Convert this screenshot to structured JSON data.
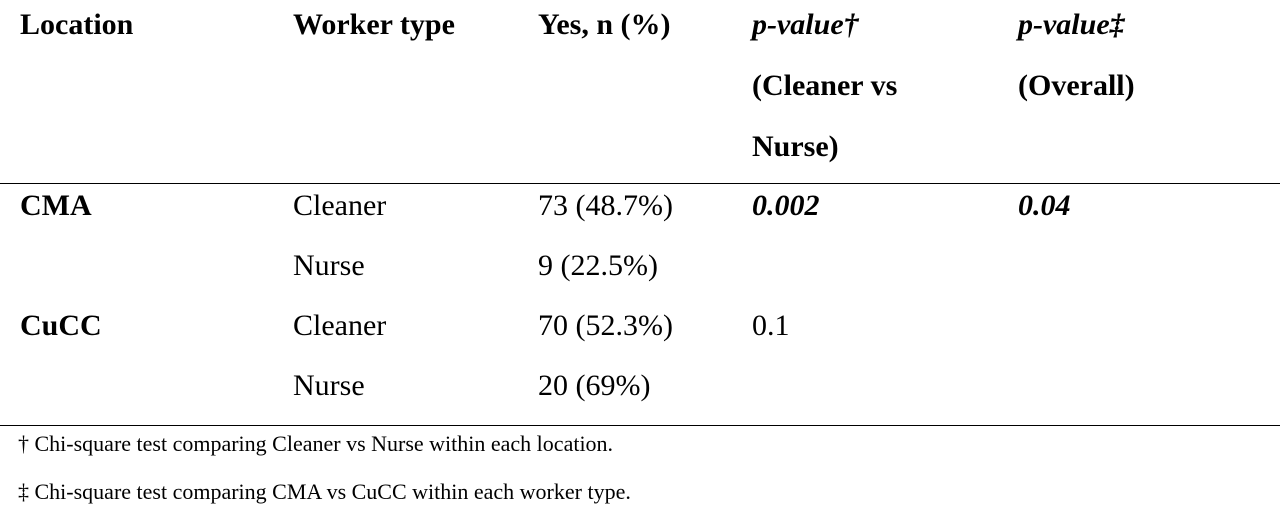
{
  "table": {
    "header": {
      "location": "Location",
      "worker": "Worker type",
      "yes": "Yes, n (%)",
      "p_pair": {
        "main": "p-value†",
        "note": "(Cleaner vs Nurse)"
      },
      "p_overall": {
        "main": "p-value‡",
        "note": "(Overall)"
      }
    },
    "rows": [
      {
        "location": "CMA",
        "worker": "Cleaner",
        "yes": "73 (48.7%)",
        "p_pair": "0.002",
        "p_overall": "0.04"
      },
      {
        "worker": "Nurse",
        "yes": "9 (22.5%)"
      },
      {
        "location": "CuCC",
        "worker": "Cleaner",
        "yes": "70 (52.3%)",
        "p_pair": "0.1"
      },
      {
        "worker": "Nurse",
        "yes": "20 (69%)"
      }
    ],
    "footnotes": [
      "† Chi-square test comparing Cleaner vs Nurse within each location.",
      "‡ Chi-square test comparing CMA vs CuCC within each worker type."
    ]
  }
}
